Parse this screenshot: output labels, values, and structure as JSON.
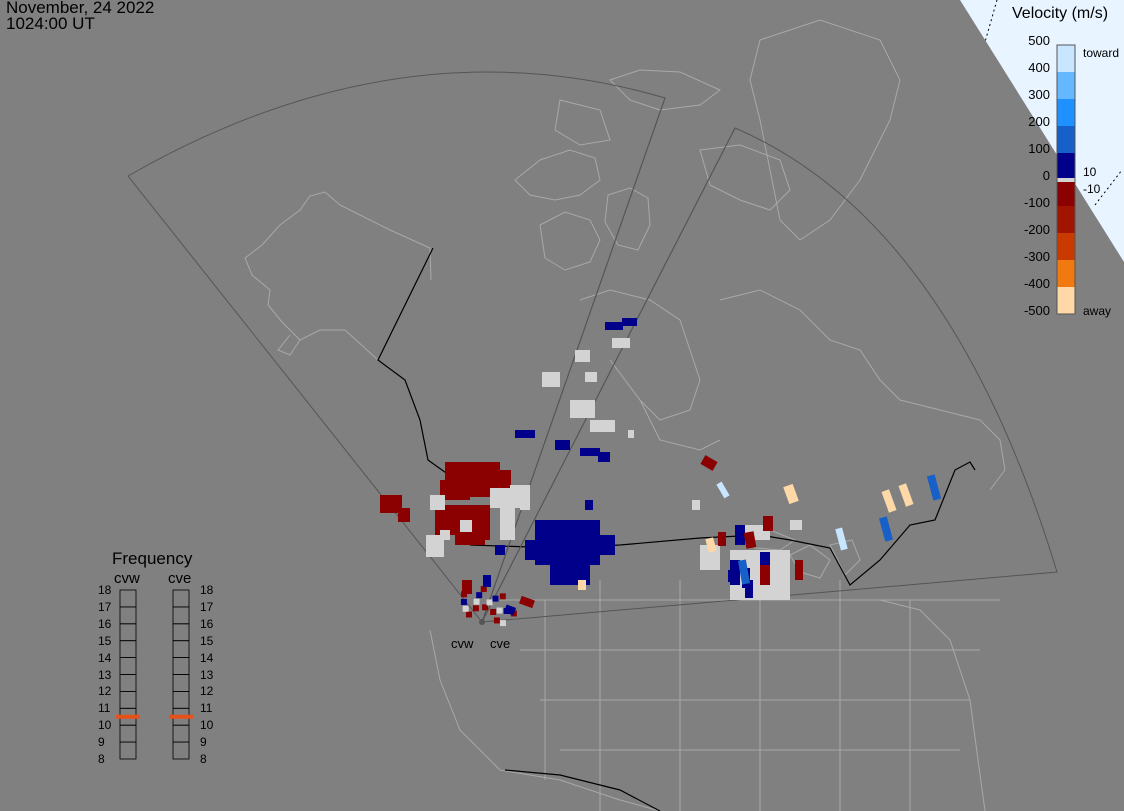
{
  "header": {
    "date": "November, 24 2022",
    "time": "1024:00 UT"
  },
  "velocity_scale": {
    "title": "Velocity (m/s)",
    "ticks": [
      "500",
      "400",
      "300",
      "200",
      "100",
      "0",
      "-100",
      "-200",
      "-300",
      "-400",
      "-500"
    ],
    "label_toward": "toward",
    "label_away": "away",
    "label_pos_threshold": "10",
    "label_neg_threshold": "-10",
    "colors": {
      "toward_500": "#c8e6ff",
      "toward_400": "#63b8ff",
      "toward_300": "#1e90ff",
      "toward_200": "#1660c8",
      "toward_100": "#00008b",
      "zero": "#d3d3d3",
      "away_100": "#8b0000",
      "away_200": "#b22200",
      "away_300": "#e05000",
      "away_400": "#ff8c1a",
      "away_500": "#ffd8a8"
    }
  },
  "frequency": {
    "title": "Frequency",
    "radars": [
      "cvw",
      "cve"
    ],
    "levels": [
      "18",
      "17",
      "16",
      "15",
      "14",
      "13",
      "12",
      "11",
      "10",
      "9",
      "8"
    ],
    "cvw_mhz": 10.5,
    "cve_mhz": 10.5,
    "marker_color": "#e8501a"
  },
  "sites": {
    "cvw": "cvw",
    "cve": "cve"
  },
  "map": {
    "background": "#808080",
    "land_outline_color": "#a8a8a8",
    "fov_color": "#555555",
    "border_color": "#000000",
    "terminator_color": "#e8f4ff"
  }
}
